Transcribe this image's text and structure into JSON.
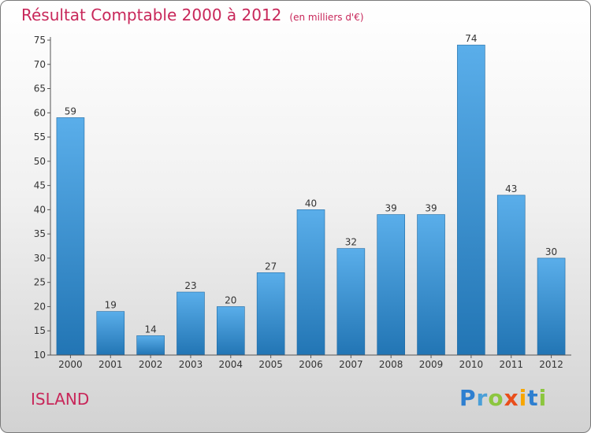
{
  "chart_data": {
    "type": "bar",
    "title": "Résultat Comptable 2000 à 2012",
    "subtitle": "(en milliers d'€)",
    "categories": [
      "2000",
      "2001",
      "2002",
      "2003",
      "2004",
      "2005",
      "2006",
      "2007",
      "2008",
      "2009",
      "2010",
      "2011",
      "2012"
    ],
    "values": [
      59,
      19,
      14,
      23,
      20,
      27,
      40,
      32,
      39,
      39,
      74,
      43,
      30
    ],
    "ylim": [
      10,
      75
    ],
    "yticks": [
      10,
      15,
      20,
      25,
      30,
      35,
      40,
      45,
      50,
      55,
      60,
      65,
      70,
      75
    ],
    "grid": false,
    "colors": {
      "bar_top": "#5aaeea",
      "bar_bottom": "#2275b4",
      "title": "#c8275a",
      "axis": "#555555"
    }
  },
  "footer": {
    "place": "ISLAND",
    "logo": [
      "P",
      "r",
      "o",
      "x",
      "i",
      "t",
      "i"
    ]
  }
}
